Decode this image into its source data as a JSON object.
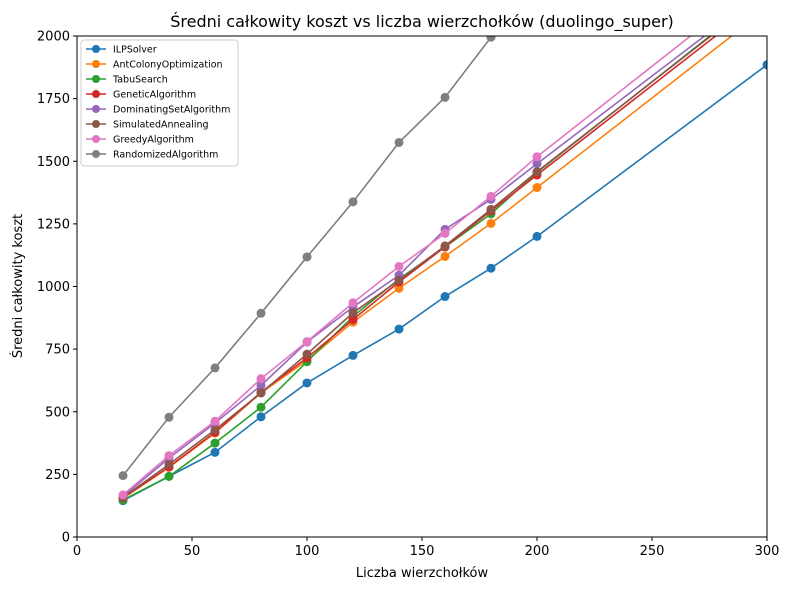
{
  "chart_data": {
    "type": "line",
    "title": "Średni całkowity koszt vs liczba wierzchołków (duolingo_super)",
    "xlabel": "Liczba wierzchołków",
    "ylabel": "Średni całkowity koszt",
    "xlim": [
      0,
      300
    ],
    "ylim": [
      0,
      2000
    ],
    "xticks": [
      "0",
      "50",
      "100",
      "150",
      "200",
      "250",
      "300"
    ],
    "yticks": [
      "0",
      "250",
      "500",
      "750",
      "1000",
      "1250",
      "1500",
      "1750",
      "2000"
    ],
    "grid": false,
    "legend_position": "top-left",
    "series": [
      {
        "name": "ILPSolver",
        "color": "#1f77b4",
        "x": [
          20,
          40,
          60,
          80,
          100,
          120,
          140,
          160,
          180,
          200,
          300
        ],
        "y": [
          145,
          242,
          338,
          480,
          615,
          725,
          830,
          960,
          1073,
          1200,
          1885
        ]
      },
      {
        "name": "AntColonyOptimization",
        "color": "#ff7f0e",
        "x": [
          20,
          40,
          60,
          80,
          100,
          120,
          140,
          160,
          180,
          200,
          300
        ],
        "y": [
          155,
          278,
          415,
          575,
          705,
          858,
          993,
          1120,
          1252,
          1395,
          2110
        ]
      },
      {
        "name": "TabuSearch",
        "color": "#2ca02c",
        "x": [
          20,
          40,
          60,
          80,
          100,
          120,
          140,
          160,
          180,
          200,
          300
        ],
        "y": [
          148,
          242,
          375,
          518,
          700,
          880,
          1030,
          1158,
          1290,
          1455,
          2180
        ]
      },
      {
        "name": "GeneticAlgorithm",
        "color": "#d62728",
        "x": [
          20,
          40,
          60,
          80,
          100,
          120,
          140,
          160,
          180,
          200,
          300
        ],
        "y": [
          156,
          280,
          418,
          578,
          715,
          868,
          1018,
          1158,
          1302,
          1445,
          2160
        ]
      },
      {
        "name": "DominatingSetAlgorithm",
        "color": "#9467bd",
        "x": [
          20,
          40,
          60,
          80,
          100,
          120,
          140,
          160,
          180,
          200,
          300
        ],
        "y": [
          162,
          315,
          455,
          605,
          778,
          918,
          1045,
          1228,
          1348,
          1490,
          2190
        ]
      },
      {
        "name": "SimulatedAnnealing",
        "color": "#8c564b",
        "x": [
          20,
          40,
          60,
          80,
          100,
          120,
          140,
          160,
          180,
          200,
          300
        ],
        "y": [
          158,
          290,
          428,
          575,
          730,
          895,
          1025,
          1162,
          1308,
          1458,
          2175
        ]
      },
      {
        "name": "GreedyAlgorithm",
        "color": "#e377c2",
        "x": [
          20,
          40,
          60,
          80,
          100,
          120,
          140,
          160,
          180,
          200,
          300
        ],
        "y": [
          168,
          325,
          462,
          632,
          780,
          935,
          1080,
          1212,
          1360,
          1518,
          2240
        ]
      },
      {
        "name": "RandomizedAlgorithm",
        "color": "#7f7f7f",
        "x": [
          20,
          40,
          60,
          80,
          100,
          120,
          140,
          160,
          180
        ],
        "y": [
          245,
          478,
          675,
          893,
          1118,
          1338,
          1575,
          1755,
          1995
        ]
      }
    ]
  }
}
